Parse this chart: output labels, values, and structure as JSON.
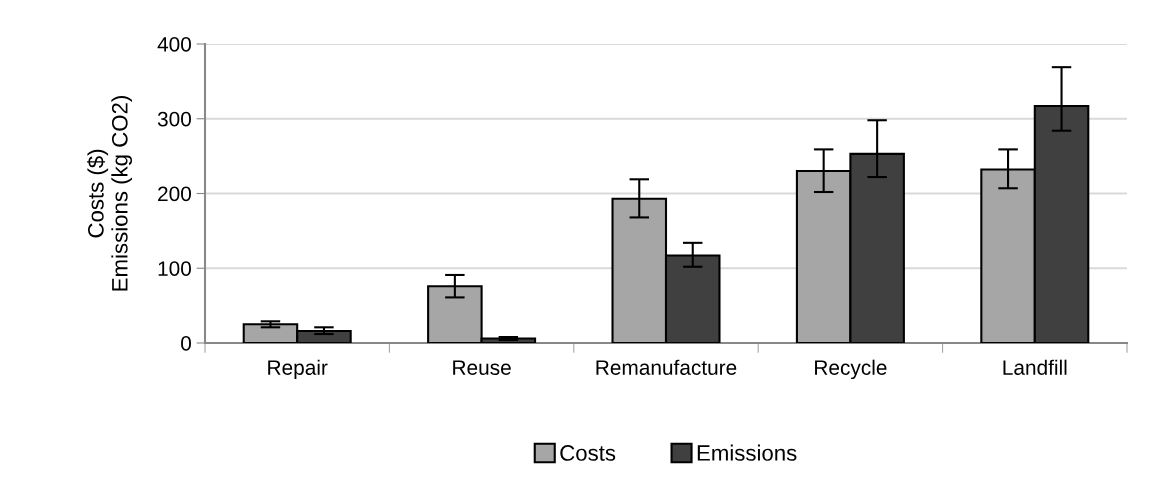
{
  "chart_data": {
    "type": "bar",
    "ylabel": "Costs ($)\nEmissions (kg CO2)",
    "categories": [
      "Repair",
      "Reuse",
      "Remanufacture",
      "Recycle",
      "Landfill"
    ],
    "series": [
      {
        "name": "Costs",
        "color": "#a6a6a6",
        "values": [
          25,
          76,
          193,
          230,
          232
        ],
        "errors": [
          [
            21,
            29
          ],
          [
            61,
            91
          ],
          [
            168,
            219
          ],
          [
            202,
            259
          ],
          [
            207,
            259
          ]
        ]
      },
      {
        "name": "Emissions",
        "color": "#404040",
        "values": [
          16,
          6,
          117,
          253,
          317
        ],
        "errors": [
          [
            12,
            21
          ],
          [
            4,
            8
          ],
          [
            102,
            134
          ],
          [
            222,
            298
          ],
          [
            284,
            369
          ]
        ]
      }
    ],
    "ylim": [
      0,
      400
    ],
    "yticks": [
      0,
      100,
      200,
      300,
      400
    ],
    "grid": "y",
    "legend": "bottom"
  }
}
